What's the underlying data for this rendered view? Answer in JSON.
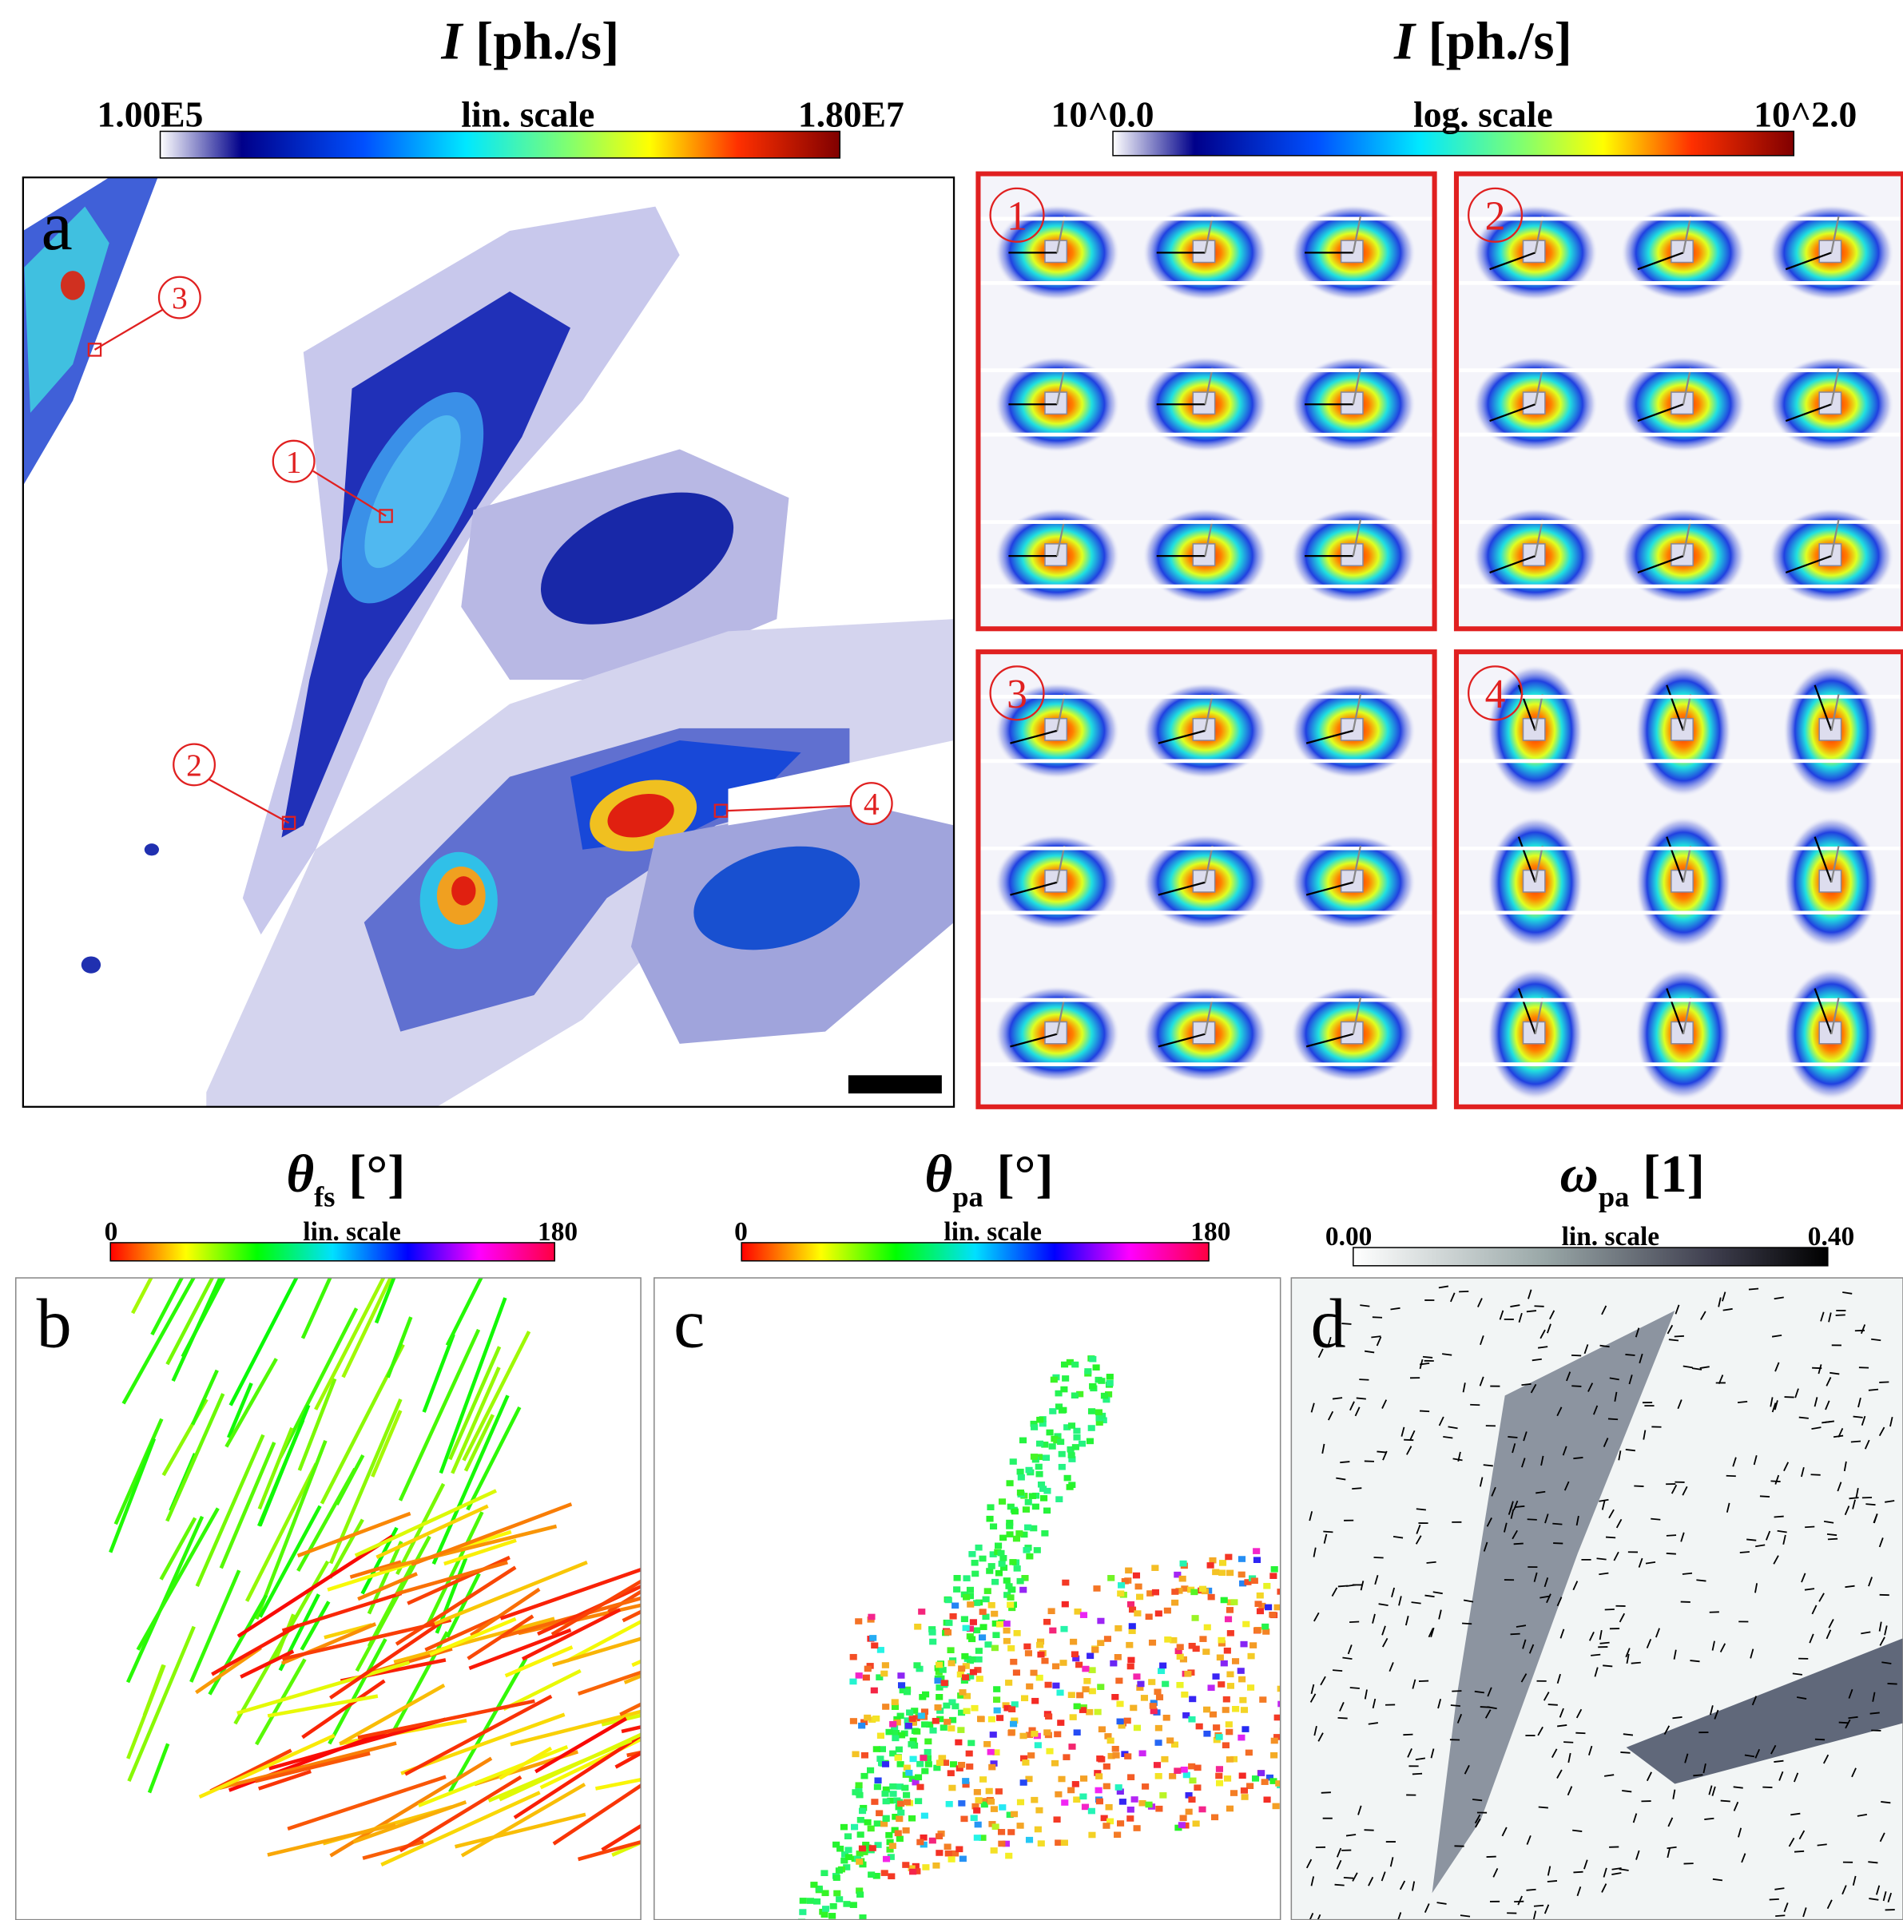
{
  "figure": {
    "panels": [
      {
        "label": "a",
        "title": {
          "symbol": "I",
          "unit": "[ph./s]"
        },
        "colorbar": {
          "min": "1.00E5",
          "scale": "lin. scale",
          "max": "1.80E7"
        },
        "markers": [
          "1",
          "2",
          "3",
          "4"
        ]
      },
      {
        "title": {
          "symbol": "I",
          "unit": "[ph./s]"
        },
        "colorbar": {
          "min": "10^0.0",
          "scale": "log. scale",
          "max": "10^2.0"
        },
        "insets": [
          "1",
          "2",
          "3",
          "4"
        ]
      },
      {
        "label": "b",
        "title": {
          "symbol": "θ",
          "subscript": "fs",
          "unit": "[°]"
        },
        "colorbar": {
          "min": "0",
          "scale": "lin. scale",
          "max": "180"
        }
      },
      {
        "label": "c",
        "title": {
          "symbol": "θ",
          "subscript": "pa",
          "unit": "[°]"
        },
        "colorbar": {
          "min": "0",
          "scale": "lin. scale",
          "max": "180"
        }
      },
      {
        "label": "d",
        "title": {
          "symbol": "ω",
          "subscript": "pa",
          "unit": "[1]"
        },
        "colorbar": {
          "min": "0.00",
          "scale": "lin. scale",
          "max": "0.40"
        }
      }
    ]
  }
}
